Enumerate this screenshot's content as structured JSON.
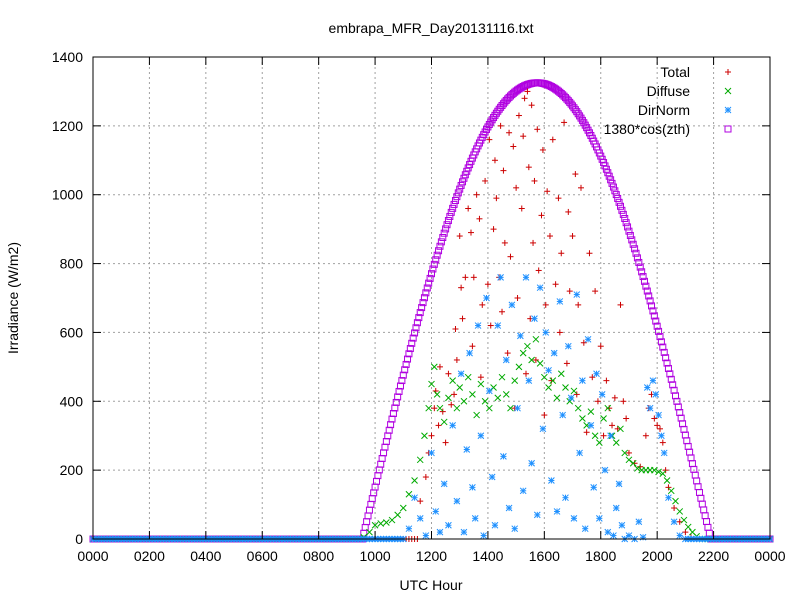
{
  "chart_data": {
    "type": "scatter",
    "title": "embrapa_MFR_Day20131116.txt",
    "xlabel": "UTC Hour",
    "ylabel": "Irradiance (W/m2)",
    "xlim": [
      0,
      2400
    ],
    "ylim": [
      0,
      1400
    ],
    "x_ticks": [
      "0000",
      "0200",
      "0400",
      "0600",
      "0800",
      "1000",
      "1200",
      "1400",
      "1600",
      "1800",
      "2000",
      "2200",
      "0000"
    ],
    "y_ticks": [
      "0",
      "200",
      "400",
      "600",
      "800",
      "1000",
      "1200",
      "1400"
    ],
    "grid": true,
    "legend_position": "top-right",
    "series": [
      {
        "name": "Total",
        "marker": "plus",
        "color": "#cc0000",
        "points": [
          [
            1160,
            110
          ],
          [
            1180,
            180
          ],
          [
            1190,
            250
          ],
          [
            1200,
            300
          ],
          [
            1210,
            380
          ],
          [
            1215,
            430
          ],
          [
            1225,
            330
          ],
          [
            1230,
            500
          ],
          [
            1240,
            370
          ],
          [
            1250,
            280
          ],
          [
            1260,
            480
          ],
          [
            1270,
            390
          ],
          [
            1280,
            420
          ],
          [
            1285,
            610
          ],
          [
            1290,
            520
          ],
          [
            1300,
            880
          ],
          [
            1305,
            730
          ],
          [
            1310,
            640
          ],
          [
            1320,
            760
          ],
          [
            1330,
            960
          ],
          [
            1340,
            890
          ],
          [
            1345,
            560
          ],
          [
            1350,
            760
          ],
          [
            1360,
            1000
          ],
          [
            1370,
            930
          ],
          [
            1375,
            470
          ],
          [
            1380,
            680
          ],
          [
            1390,
            1040
          ],
          [
            1400,
            740
          ],
          [
            1405,
            1160
          ],
          [
            1410,
            620
          ],
          [
            1420,
            900
          ],
          [
            1425,
            1100
          ],
          [
            1430,
            990
          ],
          [
            1440,
            760
          ],
          [
            1445,
            1200
          ],
          [
            1450,
            660
          ],
          [
            1455,
            1070
          ],
          [
            1460,
            860
          ],
          [
            1470,
            540
          ],
          [
            1475,
            1180
          ],
          [
            1480,
            820
          ],
          [
            1490,
            1140
          ],
          [
            1495,
            380
          ],
          [
            1500,
            1020
          ],
          [
            1505,
            700
          ],
          [
            1510,
            1230
          ],
          [
            1520,
            960
          ],
          [
            1525,
            1170
          ],
          [
            1530,
            1280
          ],
          [
            1535,
            480
          ],
          [
            1540,
            1300
          ],
          [
            1545,
            1080
          ],
          [
            1550,
            640
          ],
          [
            1555,
            1260
          ],
          [
            1560,
            860
          ],
          [
            1565,
            1040
          ],
          [
            1570,
            520
          ],
          [
            1575,
            1190
          ],
          [
            1580,
            780
          ],
          [
            1590,
            940
          ],
          [
            1595,
            1130
          ],
          [
            1600,
            360
          ],
          [
            1605,
            680
          ],
          [
            1610,
            1010
          ],
          [
            1620,
            880
          ],
          [
            1625,
            460
          ],
          [
            1630,
            1160
          ],
          [
            1640,
            740
          ],
          [
            1650,
            990
          ],
          [
            1655,
            600
          ],
          [
            1660,
            830
          ],
          [
            1670,
            1210
          ],
          [
            1680,
            510
          ],
          [
            1685,
            950
          ],
          [
            1690,
            720
          ],
          [
            1700,
            880
          ],
          [
            1710,
            1060
          ],
          [
            1715,
            420
          ],
          [
            1720,
            680
          ],
          [
            1730,
            1020
          ],
          [
            1740,
            570
          ],
          [
            1750,
            310
          ],
          [
            1760,
            830
          ],
          [
            1770,
            470
          ],
          [
            1780,
            720
          ],
          [
            1790,
            400
          ],
          [
            1800,
            560
          ],
          [
            1810,
            300
          ],
          [
            1820,
            460
          ],
          [
            1830,
            380
          ],
          [
            1840,
            330
          ],
          [
            1850,
            410
          ],
          [
            1860,
            320
          ],
          [
            1870,
            680
          ],
          [
            1880,
            400
          ],
          [
            1890,
            350
          ],
          [
            1900,
            250
          ],
          [
            1920,
            220
          ],
          [
            1940,
            210
          ],
          [
            1960,
            300
          ],
          [
            1970,
            380
          ],
          [
            1980,
            420
          ],
          [
            1990,
            350
          ],
          [
            2000,
            330
          ],
          [
            2010,
            320
          ],
          [
            2020,
            280
          ],
          [
            2030,
            200
          ],
          [
            2040,
            150
          ],
          [
            2060,
            90
          ],
          [
            2080,
            50
          ],
          [
            2100,
            20
          ],
          [
            2120,
            5
          ],
          [
            2140,
            0
          ]
        ]
      },
      {
        "name": "Diffuse",
        "marker": "x",
        "color": "#00aa00",
        "points": [
          [
            960,
            5
          ],
          [
            980,
            20
          ],
          [
            1000,
            40
          ],
          [
            1020,
            45
          ],
          [
            1040,
            48
          ],
          [
            1060,
            55
          ],
          [
            1080,
            70
          ],
          [
            1100,
            90
          ],
          [
            1120,
            130
          ],
          [
            1140,
            170
          ],
          [
            1160,
            230
          ],
          [
            1175,
            300
          ],
          [
            1190,
            380
          ],
          [
            1200,
            450
          ],
          [
            1210,
            500
          ],
          [
            1220,
            420
          ],
          [
            1230,
            380
          ],
          [
            1245,
            340
          ],
          [
            1260,
            410
          ],
          [
            1275,
            460
          ],
          [
            1290,
            380
          ],
          [
            1300,
            440
          ],
          [
            1315,
            400
          ],
          [
            1330,
            470
          ],
          [
            1345,
            420
          ],
          [
            1360,
            360
          ],
          [
            1375,
            450
          ],
          [
            1390,
            400
          ],
          [
            1405,
            380
          ],
          [
            1420,
            440
          ],
          [
            1435,
            410
          ],
          [
            1450,
            470
          ],
          [
            1465,
            420
          ],
          [
            1480,
            380
          ],
          [
            1495,
            460
          ],
          [
            1510,
            500
          ],
          [
            1525,
            540
          ],
          [
            1540,
            560
          ],
          [
            1555,
            520
          ],
          [
            1570,
            580
          ],
          [
            1585,
            510
          ],
          [
            1600,
            470
          ],
          [
            1615,
            440
          ],
          [
            1630,
            460
          ],
          [
            1645,
            410
          ],
          [
            1660,
            480
          ],
          [
            1675,
            440
          ],
          [
            1690,
            400
          ],
          [
            1705,
            430
          ],
          [
            1720,
            380
          ],
          [
            1735,
            350
          ],
          [
            1750,
            330
          ],
          [
            1765,
            370
          ],
          [
            1780,
            300
          ],
          [
            1795,
            280
          ],
          [
            1810,
            350
          ],
          [
            1825,
            380
          ],
          [
            1840,
            300
          ],
          [
            1855,
            280
          ],
          [
            1870,
            320
          ],
          [
            1885,
            250
          ],
          [
            1900,
            230
          ],
          [
            1915,
            220
          ],
          [
            1930,
            205
          ],
          [
            1945,
            200
          ],
          [
            1960,
            200
          ],
          [
            1975,
            200
          ],
          [
            1990,
            200
          ],
          [
            2005,
            195
          ],
          [
            2020,
            190
          ],
          [
            2035,
            170
          ],
          [
            2050,
            140
          ],
          [
            2065,
            110
          ],
          [
            2080,
            80
          ],
          [
            2095,
            55
          ],
          [
            2110,
            35
          ],
          [
            2125,
            20
          ],
          [
            2140,
            8
          ],
          [
            2160,
            0
          ]
        ]
      },
      {
        "name": "DirNorm",
        "marker": "asterisk",
        "color": "#1e90ff",
        "points": [
          [
            1100,
            0
          ],
          [
            1120,
            30
          ],
          [
            1140,
            120
          ],
          [
            1160,
            60
          ],
          [
            1180,
            10
          ],
          [
            1200,
            250
          ],
          [
            1215,
            80
          ],
          [
            1230,
            20
          ],
          [
            1245,
            160
          ],
          [
            1260,
            40
          ],
          [
            1275,
            330
          ],
          [
            1290,
            110
          ],
          [
            1305,
            480
          ],
          [
            1315,
            20
          ],
          [
            1325,
            260
          ],
          [
            1335,
            540
          ],
          [
            1345,
            150
          ],
          [
            1355,
            60
          ],
          [
            1365,
            620
          ],
          [
            1375,
            300
          ],
          [
            1385,
            10
          ],
          [
            1395,
            700
          ],
          [
            1405,
            430
          ],
          [
            1415,
            180
          ],
          [
            1425,
            40
          ],
          [
            1435,
            620
          ],
          [
            1445,
            760
          ],
          [
            1455,
            240
          ],
          [
            1465,
            520
          ],
          [
            1475,
            90
          ],
          [
            1485,
            680
          ],
          [
            1495,
            30
          ],
          [
            1505,
            380
          ],
          [
            1515,
            590
          ],
          [
            1525,
            140
          ],
          [
            1535,
            760
          ],
          [
            1545,
            460
          ],
          [
            1555,
            220
          ],
          [
            1565,
            640
          ],
          [
            1575,
            70
          ],
          [
            1585,
            730
          ],
          [
            1595,
            320
          ],
          [
            1605,
            600
          ],
          [
            1615,
            490
          ],
          [
            1625,
            170
          ],
          [
            1635,
            540
          ],
          [
            1645,
            80
          ],
          [
            1655,
            690
          ],
          [
            1665,
            360
          ],
          [
            1675,
            120
          ],
          [
            1685,
            560
          ],
          [
            1695,
            410
          ],
          [
            1705,
            60
          ],
          [
            1715,
            710
          ],
          [
            1725,
            250
          ],
          [
            1735,
            460
          ],
          [
            1745,
            30
          ],
          [
            1755,
            580
          ],
          [
            1765,
            330
          ],
          [
            1775,
            150
          ],
          [
            1785,
            480
          ],
          [
            1795,
            60
          ],
          [
            1805,
            420
          ],
          [
            1815,
            200
          ],
          [
            1825,
            20
          ],
          [
            1835,
            300
          ],
          [
            1845,
            10
          ],
          [
            1855,
            90
          ],
          [
            1865,
            160
          ],
          [
            1875,
            40
          ],
          [
            1885,
            0
          ],
          [
            1900,
            10
          ],
          [
            1920,
            0
          ],
          [
            1935,
            50
          ],
          [
            1950,
            5
          ],
          [
            1965,
            440
          ],
          [
            1975,
            380
          ],
          [
            1985,
            460
          ],
          [
            1995,
            420
          ],
          [
            2005,
            360
          ],
          [
            2015,
            300
          ],
          [
            2025,
            250
          ],
          [
            2040,
            120
          ],
          [
            2060,
            50
          ],
          [
            2080,
            10
          ],
          [
            2100,
            0
          ]
        ]
      },
      {
        "name": "1380*cos(zth)",
        "marker": "square",
        "color": "#b000e0",
        "curve": {
          "sunrise": 955,
          "noon": 1575,
          "sunset": 2190,
          "peak": 1325
        }
      }
    ]
  }
}
